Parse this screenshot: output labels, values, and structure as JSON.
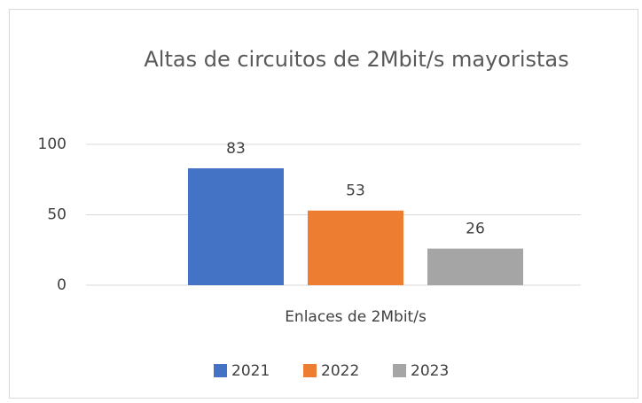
{
  "chart_data": {
    "type": "bar",
    "title": "Altas de circuitos de 2Mbit/s mayoristas",
    "categories": [
      "Enlaces de 2Mbit/s"
    ],
    "series": [
      {
        "name": "2021",
        "color": "#4472c4",
        "values": [
          83
        ]
      },
      {
        "name": "2022",
        "color": "#ed7d31",
        "values": [
          53
        ]
      },
      {
        "name": "2023",
        "color": "#a5a5a5",
        "values": [
          26
        ]
      }
    ],
    "ylim": [
      0,
      100
    ],
    "yticks": [
      0,
      50,
      100
    ],
    "grid": true,
    "legend": "bottom",
    "data_labels": true
  }
}
